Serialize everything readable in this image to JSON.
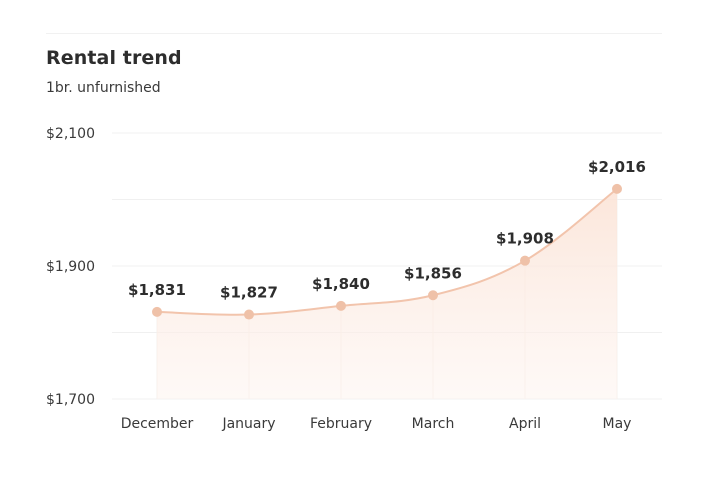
{
  "chart_data": {
    "type": "area",
    "title": "Rental trend",
    "subtitle": "1br. unfurnished",
    "categories": [
      "December",
      "January",
      "February",
      "March",
      "April",
      "May"
    ],
    "values": [
      1831,
      1827,
      1840,
      1856,
      1908,
      2016
    ],
    "data_labels": [
      "$1,831",
      "$1,827",
      "$1,840",
      "$1,856",
      "$1,908",
      "$2,016"
    ],
    "y_ticks": [
      {
        "value": 1700,
        "label": "$1,700"
      },
      {
        "value": 1900,
        "label": "$1,900"
      },
      {
        "value": 2100,
        "label": "$2,100"
      }
    ],
    "ylim": [
      1700,
      2100
    ],
    "grid": true,
    "legend": "none",
    "colors": {
      "line": "#f2c4ac",
      "marker": "#efc1a8",
      "fill": "#fdeee6",
      "grid": "#f0f0f0"
    }
  }
}
